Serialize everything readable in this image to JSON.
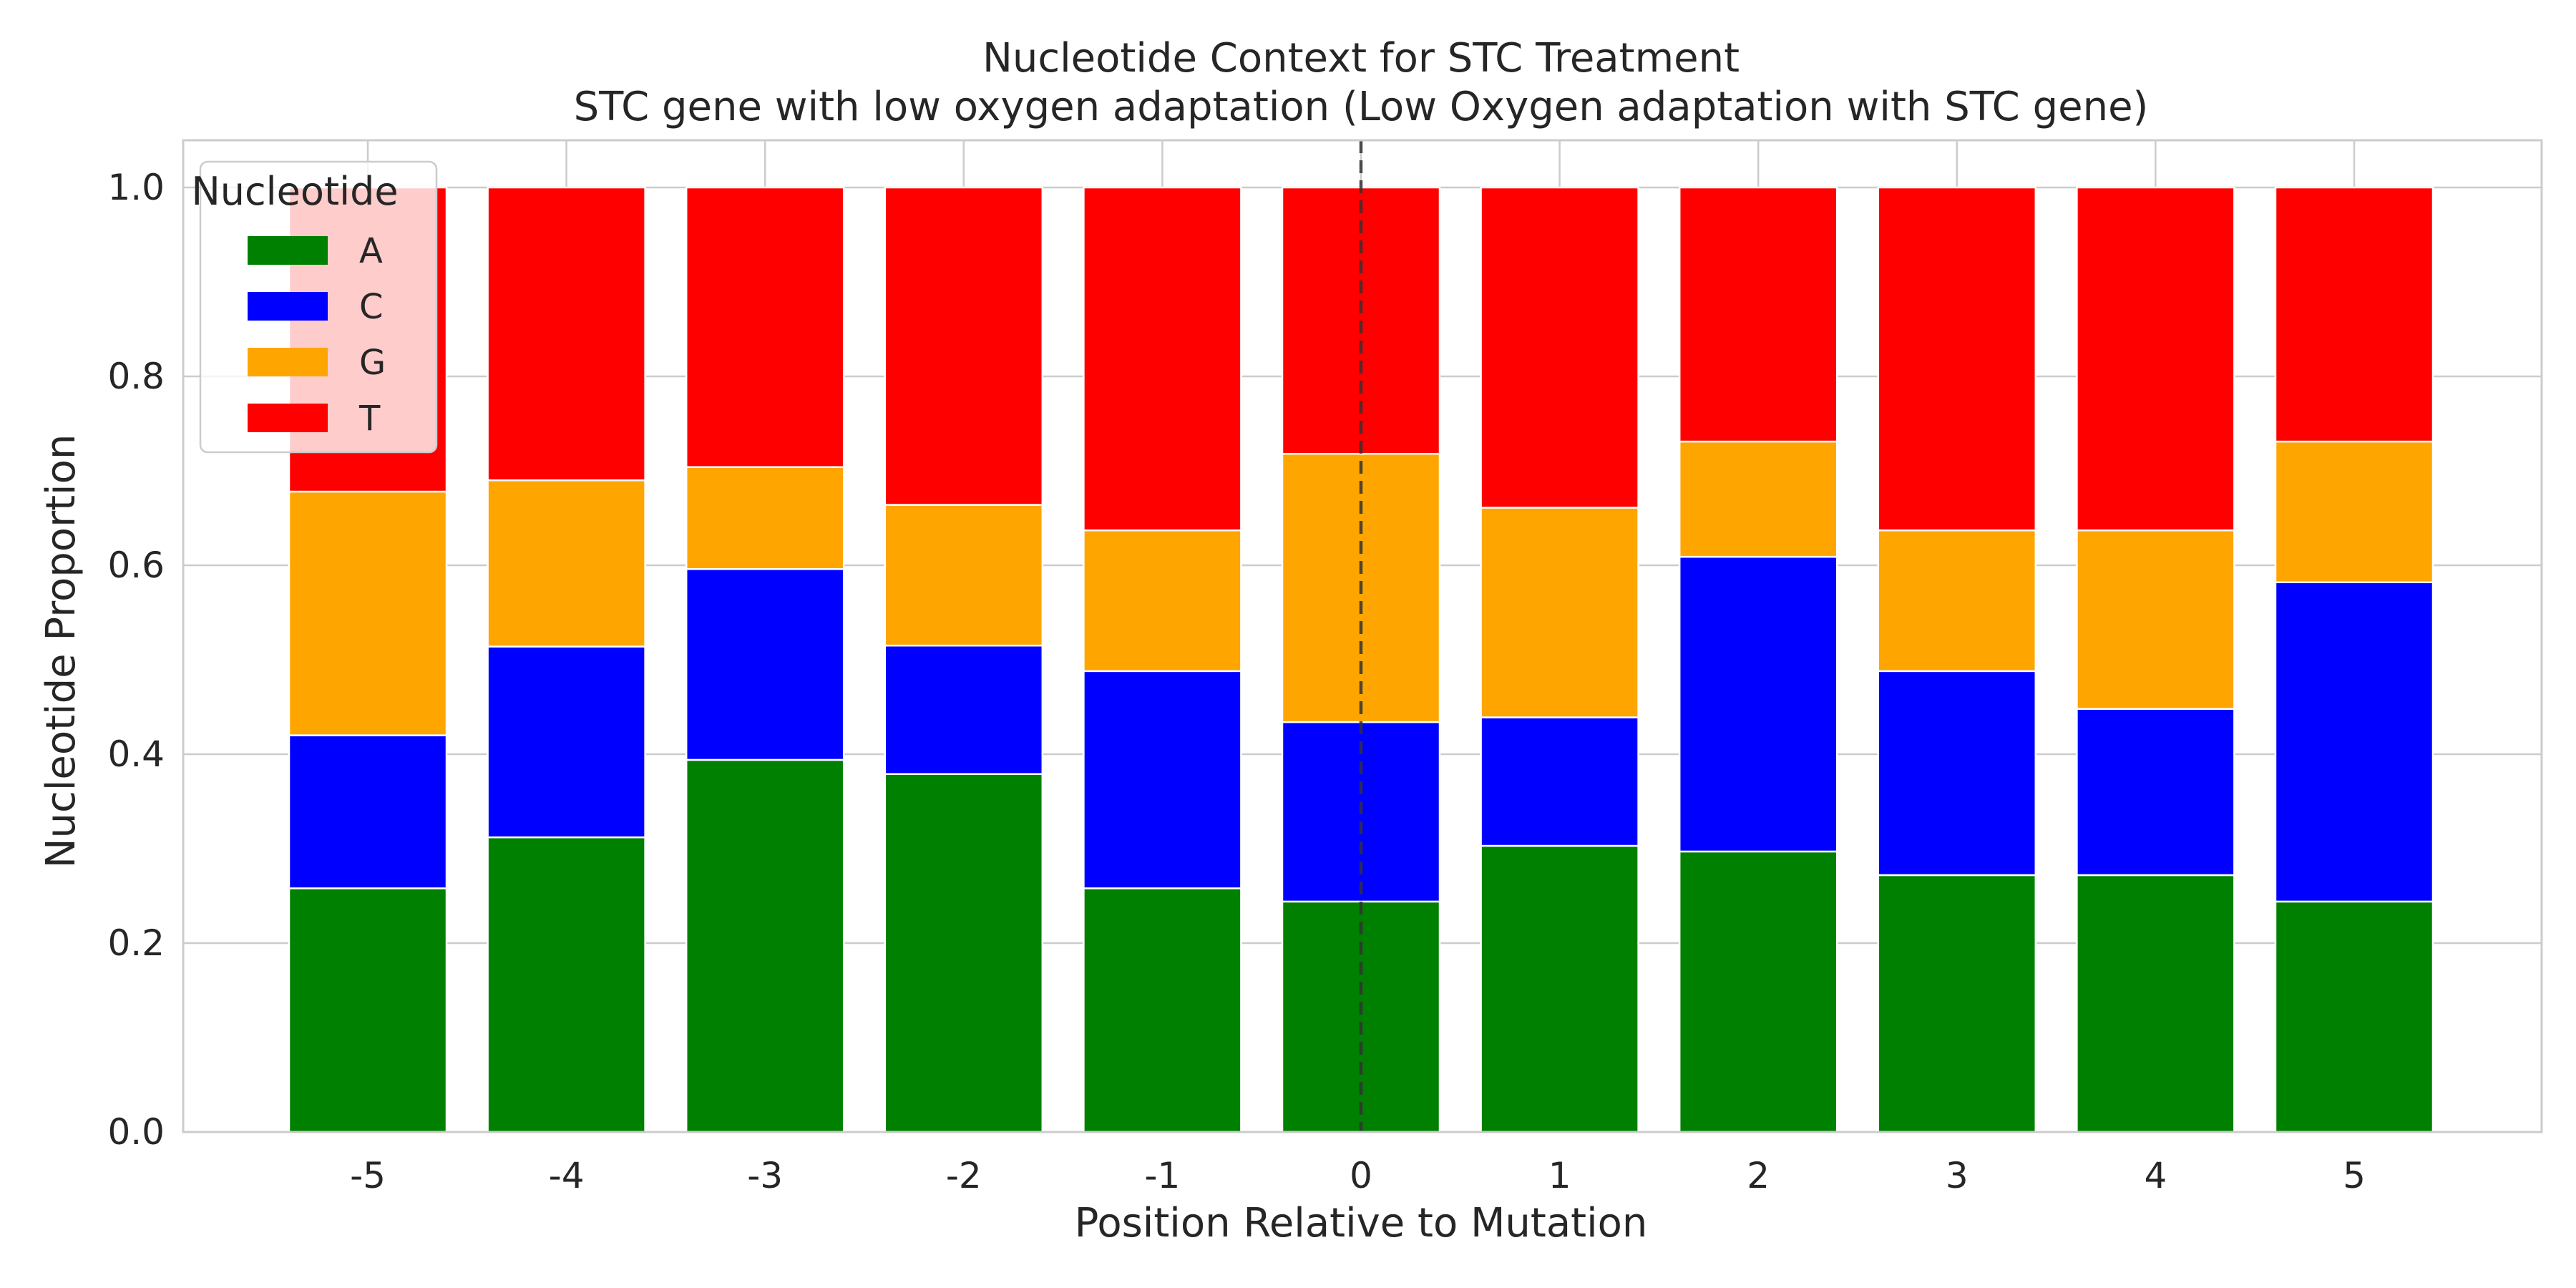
{
  "chart_data": {
    "type": "bar",
    "stacked": true,
    "title": "Nucleotide Context for STC Treatment",
    "subtitle": "STC gene with low oxygen adaptation (Low Oxygen adaptation with STC gene)",
    "xlabel": "Position Relative to Mutation",
    "ylabel": "Nucleotide Proportion",
    "ylim": [
      0,
      1.05
    ],
    "yticks": [
      "0.0",
      "0.2",
      "0.4",
      "0.6",
      "0.8",
      "1.0"
    ],
    "categories": [
      "-5",
      "-4",
      "-3",
      "-2",
      "-1",
      "0",
      "1",
      "2",
      "3",
      "4",
      "5"
    ],
    "series": [
      {
        "name": "A",
        "color": "#008000",
        "values": [
          0.258,
          0.312,
          0.394,
          0.379,
          0.258,
          0.244,
          0.303,
          0.297,
          0.272,
          0.272,
          0.244
        ]
      },
      {
        "name": "C",
        "color": "#0000ff",
        "values": [
          0.162,
          0.202,
          0.202,
          0.136,
          0.23,
          0.19,
          0.136,
          0.312,
          0.216,
          0.176,
          0.338
        ]
      },
      {
        "name": "G",
        "color": "#ffa500",
        "values": [
          0.258,
          0.176,
          0.108,
          0.149,
          0.149,
          0.284,
          0.222,
          0.122,
          0.149,
          0.189,
          0.149
        ]
      },
      {
        "name": "T",
        "color": "#ff0000",
        "values": [
          0.322,
          0.31,
          0.296,
          0.336,
          0.363,
          0.282,
          0.339,
          0.269,
          0.363,
          0.363,
          0.269
        ]
      }
    ],
    "reference_line": {
      "x": "0",
      "style": "dashed"
    },
    "legend": {
      "title": "Nucleotide",
      "position": "top-left"
    },
    "grid": true
  }
}
